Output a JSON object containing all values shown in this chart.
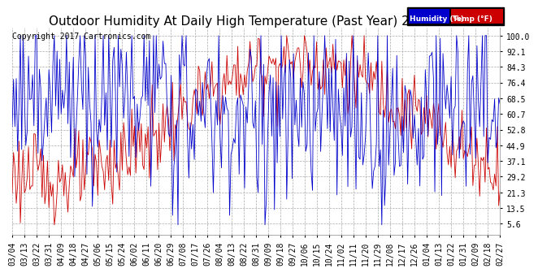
{
  "title": "Outdoor Humidity At Daily High Temperature (Past Year) 20170304",
  "copyright": "Copyright 2017 Cartronics.com",
  "yticks": [
    5.6,
    13.5,
    21.3,
    29.2,
    37.1,
    44.9,
    52.8,
    60.7,
    68.5,
    76.4,
    84.3,
    92.1,
    100.0
  ],
  "xlabels": [
    "03/04",
    "03/13",
    "03/22",
    "03/31",
    "04/09",
    "04/18",
    "04/27",
    "05/06",
    "05/15",
    "05/24",
    "06/02",
    "06/11",
    "06/20",
    "06/29",
    "07/08",
    "07/17",
    "07/26",
    "08/04",
    "08/13",
    "08/22",
    "08/31",
    "09/09",
    "09/18",
    "09/27",
    "10/06",
    "10/15",
    "10/24",
    "11/02",
    "11/11",
    "11/20",
    "11/29",
    "12/08",
    "12/17",
    "12/26",
    "01/04",
    "01/13",
    "01/22",
    "01/31",
    "02/09",
    "02/18",
    "02/27"
  ],
  "legend_humidity_color": "#0000cc",
  "legend_temp_color": "#cc0000",
  "legend_humidity_label": "Humidity (%)",
  "legend_temp_label": "Temp (°F)",
  "background_color": "#ffffff",
  "grid_color": "#aaaaaa",
  "title_fontsize": 11,
  "tick_fontsize": 7,
  "copyright_fontsize": 7,
  "ylim_min": 0,
  "ylim_max": 104
}
